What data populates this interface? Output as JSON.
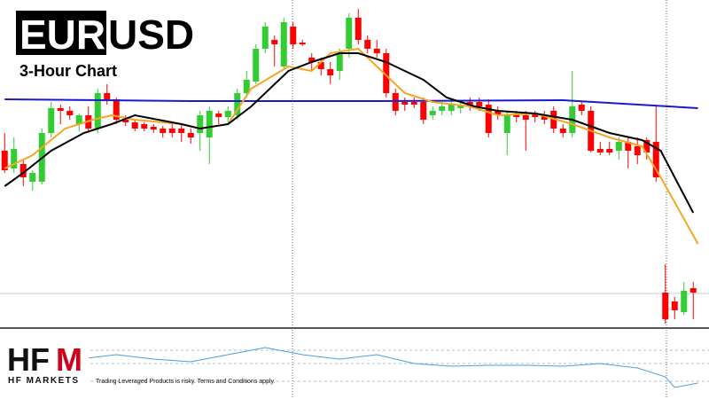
{
  "chart_data": [
    {
      "type": "candlestick",
      "title_highlight": "EUR",
      "title_rest": "USD",
      "subtitle": "3-Hour Chart",
      "up_color": "#33cc33",
      "down_color": "#ff0000",
      "xlim": [
        -0.5,
        75.5
      ],
      "ylim": [
        0,
        370
      ],
      "ohlc": [
        [
          200,
          220,
          175,
          178
        ],
        [
          180,
          215,
          175,
          202
        ],
        [
          185,
          190,
          160,
          170
        ],
        [
          165,
          178,
          155,
          175
        ],
        [
          165,
          225,
          162,
          220
        ],
        [
          220,
          255,
          215,
          248
        ],
        [
          248,
          252,
          230,
          245
        ],
        [
          245,
          250,
          235,
          240
        ],
        [
          230,
          242,
          222,
          240
        ],
        [
          240,
          250,
          220,
          225
        ],
        [
          225,
          270,
          220,
          265
        ],
        [
          265,
          275,
          252,
          258
        ],
        [
          258,
          260,
          230,
          235
        ],
        [
          235,
          240,
          228,
          232
        ],
        [
          232,
          235,
          222,
          225
        ],
        [
          230,
          232,
          222,
          225
        ],
        [
          227,
          230,
          220,
          224
        ],
        [
          225,
          228,
          215,
          220
        ],
        [
          225,
          230,
          215,
          220
        ],
        [
          225,
          230,
          210,
          220
        ],
        [
          220,
          225,
          208,
          215
        ],
        [
          220,
          245,
          200,
          240
        ],
        [
          215,
          250,
          185,
          245
        ],
        [
          242,
          245,
          230,
          238
        ],
        [
          238,
          250,
          230,
          245
        ],
        [
          240,
          270,
          235,
          265
        ],
        [
          265,
          290,
          260,
          280
        ],
        [
          278,
          320,
          275,
          315
        ],
        [
          315,
          345,
          310,
          340
        ],
        [
          325,
          330,
          295,
          320
        ],
        [
          295,
          350,
          292,
          345
        ],
        [
          340,
          345,
          315,
          320
        ],
        [
          322,
          325,
          318,
          320
        ],
        [
          305,
          310,
          290,
          300
        ],
        [
          300,
          305,
          285,
          292
        ],
        [
          292,
          300,
          275,
          285
        ],
        [
          290,
          315,
          280,
          310
        ],
        [
          315,
          355,
          305,
          350
        ],
        [
          350,
          360,
          320,
          325
        ],
        [
          325,
          330,
          310,
          315
        ],
        [
          315,
          325,
          305,
          310
        ],
        [
          310,
          315,
          260,
          265
        ],
        [
          265,
          270,
          240,
          245
        ],
        [
          255,
          260,
          245,
          252
        ],
        [
          255,
          260,
          248,
          252
        ],
        [
          255,
          260,
          230,
          235
        ],
        [
          240,
          250,
          235,
          245
        ],
        [
          245,
          255,
          240,
          250
        ],
        [
          245,
          258,
          240,
          252
        ],
        [
          248,
          255,
          242,
          252
        ],
        [
          255,
          260,
          245,
          250
        ],
        [
          255,
          260,
          245,
          250
        ],
        [
          252,
          258,
          215,
          220
        ],
        [
          245,
          250,
          235,
          240
        ],
        [
          220,
          245,
          195,
          240
        ],
        [
          242,
          245,
          232,
          238
        ],
        [
          240,
          245,
          200,
          235
        ],
        [
          242,
          245,
          232,
          238
        ],
        [
          240,
          245,
          230,
          235
        ],
        [
          245,
          250,
          220,
          225
        ],
        [
          225,
          230,
          215,
          220
        ],
        [
          220,
          290,
          215,
          250
        ],
        [
          252,
          255,
          240,
          245
        ],
        [
          245,
          250,
          198,
          200
        ],
        [
          202,
          210,
          195,
          198
        ],
        [
          202,
          210,
          195,
          198
        ],
        [
          200,
          215,
          190,
          210
        ],
        [
          210,
          215,
          180,
          200
        ],
        [
          205,
          215,
          185,
          195
        ],
        [
          212,
          215,
          190,
          198
        ],
        [
          210,
          252,
          165,
          170
        ],
        [
          40,
          72,
          5,
          10
        ],
        [
          30,
          35,
          10,
          20
        ],
        [
          18,
          52,
          15,
          42
        ],
        [
          45,
          52,
          10,
          40
        ]
      ],
      "lines": [
        {
          "color": "#1a1acc",
          "x": [
            0,
            20,
            40,
            60,
            74.5
          ],
          "values": [
            258,
            256,
            256,
            257,
            248
          ]
        },
        {
          "color": "#f5a623",
          "x": [
            0,
            3,
            6.5,
            9.5,
            11.5,
            14,
            19,
            21,
            24,
            26.5,
            30.5,
            33,
            35,
            38,
            40,
            43,
            46,
            50,
            53,
            57,
            61,
            65,
            68.5,
            70.5,
            74.5
          ],
          "values": [
            180,
            195,
            225,
            235,
            240,
            235,
            230,
            225,
            230,
            270,
            295,
            290,
            310,
            315,
            295,
            265,
            255,
            250,
            240,
            242,
            230,
            215,
            205,
            170,
            95
          ]
        },
        {
          "color": "#000000",
          "x": [
            0,
            2,
            5,
            8.5,
            11.5,
            14,
            19,
            21,
            24,
            26.5,
            28.5,
            30.5,
            33,
            36,
            38,
            41,
            45,
            47.5,
            50.5,
            53,
            57,
            61,
            65,
            68.5,
            70.5,
            74
          ],
          "values": [
            160,
            175,
            200,
            220,
            230,
            240,
            230,
            225,
            230,
            250,
            270,
            290,
            300,
            310,
            310,
            300,
            280,
            260,
            250,
            245,
            242,
            235,
            220,
            212,
            200,
            130
          ]
        }
      ]
    },
    {
      "type": "line",
      "color": "#4a9fe0",
      "xlim": [
        -0.5,
        75.5
      ],
      "ylim": [
        0,
        80
      ],
      "x": [
        0,
        4,
        8,
        12,
        16,
        20,
        24,
        28,
        32,
        36,
        40,
        44,
        48,
        52,
        56,
        60,
        64,
        68,
        71,
        72,
        74.5
      ],
      "values": [
        50,
        55,
        45,
        50,
        45,
        42,
        50,
        58,
        50,
        45,
        50,
        40,
        37,
        38,
        38,
        37,
        40,
        35,
        25,
        13,
        18
      ]
    }
  ],
  "branding": {
    "logo_hf": "HF",
    "logo_m": "M",
    "company": "HF MARKETS",
    "disclaimer": "Trading Leveraged Products is risky. Terms and Conditions apply."
  }
}
